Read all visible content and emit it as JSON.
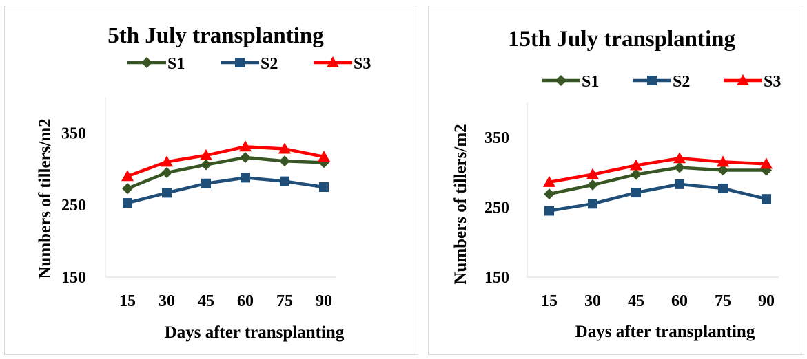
{
  "chart_data": [
    {
      "type": "line",
      "title": "5th July transplanting",
      "xlabel": "Days after transplanting",
      "ylabel": "Numbers of tillers/m2",
      "categories": [
        "15",
        "30",
        "45",
        "60",
        "75",
        "90"
      ],
      "yticks": [
        "150",
        "250",
        "350"
      ],
      "ylim": [
        150,
        400
      ],
      "grid": false,
      "legend_position": "top",
      "series": [
        {
          "name": "S1",
          "color": "#375623",
          "marker": "diamond",
          "values": [
            273,
            295,
            306,
            316,
            311,
            309
          ]
        },
        {
          "name": "S2",
          "color": "#1f4e79",
          "marker": "square",
          "values": [
            253,
            267,
            280,
            288,
            283,
            275
          ]
        },
        {
          "name": "S3",
          "color": "#ff0000",
          "marker": "triangle",
          "values": [
            290,
            310,
            319,
            331,
            328,
            317
          ]
        }
      ]
    },
    {
      "type": "line",
      "title": "15th July transplanting",
      "xlabel": "Days after transplanting",
      "ylabel": "Numbers of tillers/m2",
      "categories": [
        "15",
        "30",
        "45",
        "60",
        "75",
        "90"
      ],
      "yticks": [
        "150",
        "250",
        "350"
      ],
      "ylim": [
        150,
        400
      ],
      "grid": false,
      "legend_position": "top",
      "series": [
        {
          "name": "S1",
          "color": "#375623",
          "marker": "diamond",
          "values": [
            269,
            282,
            297,
            307,
            303,
            303
          ]
        },
        {
          "name": "S2",
          "color": "#1f4e79",
          "marker": "square",
          "values": [
            245,
            255,
            271,
            283,
            277,
            262
          ]
        },
        {
          "name": "S3",
          "color": "#ff0000",
          "marker": "triangle",
          "values": [
            286,
            297,
            310,
            320,
            315,
            312
          ]
        }
      ]
    }
  ]
}
